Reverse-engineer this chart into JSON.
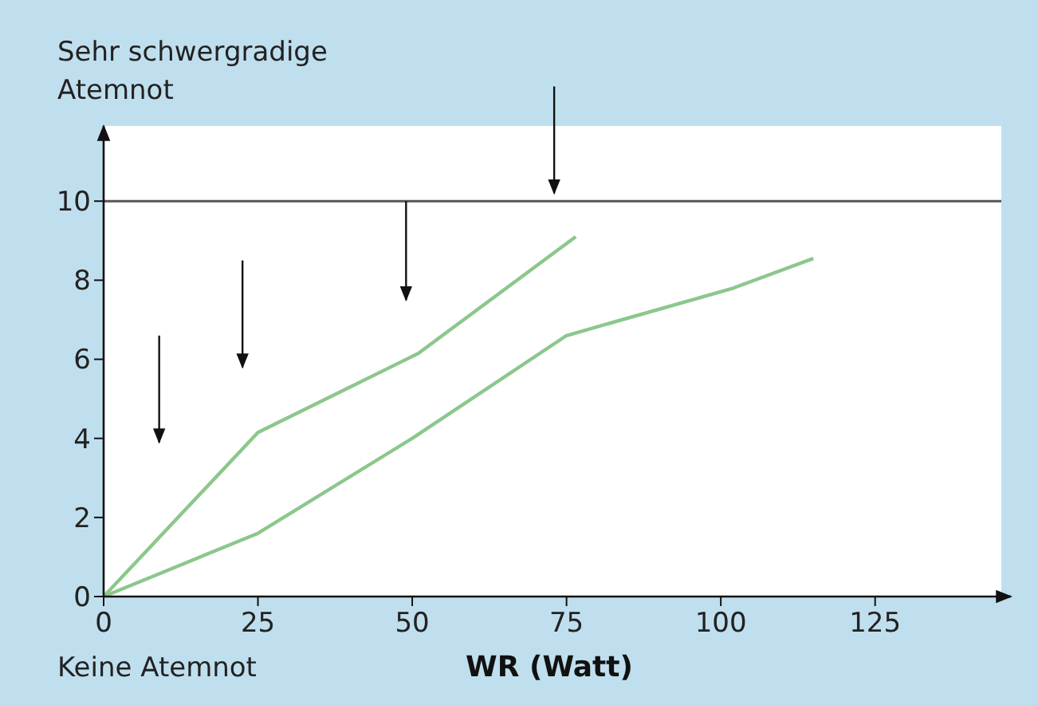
{
  "chart_data": {
    "type": "line",
    "ylabel": "Sehr schwergradige Atemnot",
    "xlabel": "WR (Watt)",
    "annotations": [
      "Keine Atemnot"
    ],
    "xlim": [
      0,
      147
    ],
    "xticks": [
      0,
      25,
      50,
      75,
      100,
      125
    ],
    "ylim": [
      0,
      11.9
    ],
    "yticks": [
      0,
      2,
      4,
      6,
      8,
      10
    ],
    "grid": false,
    "marker": "none",
    "line_style": "solid",
    "ref_lines": [
      {
        "axis": "y",
        "value": 10,
        "color": "#555555"
      }
    ],
    "series": [
      {
        "color": "#8cc78c",
        "x": [
          0,
          25,
          51,
          76.5
        ],
        "values": [
          0,
          4.15,
          6.15,
          9.1
        ]
      },
      {
        "color": "#8cc78c",
        "x": [
          0,
          25,
          50,
          75,
          102,
          115
        ],
        "values": [
          0,
          1.6,
          4.0,
          6.6,
          7.8,
          8.55
        ]
      }
    ]
  }
}
